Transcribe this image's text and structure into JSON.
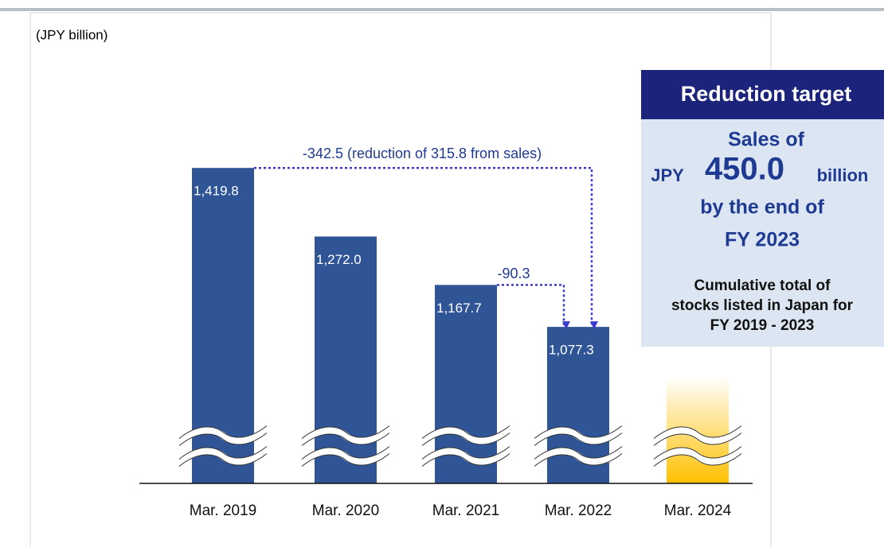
{
  "chart_data": {
    "type": "bar",
    "unit_label": "(JPY billion)",
    "categories": [
      "Mar. 2019",
      "Mar. 2020",
      "Mar. 2021",
      "Mar. 2022",
      "Mar. 2024"
    ],
    "values": [
      1419.8,
      1272.0,
      1167.7,
      1077.3,
      970
    ],
    "value_labels": [
      "1,419.8",
      "1,272.0",
      "1,167.7",
      "1,077.3",
      null
    ],
    "colors": [
      "#2f5597",
      "#2f5597",
      "#2f5597",
      "#2f5597",
      "#ffc000"
    ],
    "ylim": [
      740,
      1720
    ],
    "annotations": {
      "long": "-342.5 (reduction of 315.8 from sales)",
      "short": "-90.3"
    },
    "target_box": {
      "header": "Reduction target",
      "line1": "Sales of",
      "prefix": "JPY",
      "amount": "450.0",
      "suffix": "billion",
      "line3": "by the end of",
      "line4": "FY 2023",
      "note1": "Cumulative total of",
      "note2": "stocks listed in Japan for",
      "note3": "FY 2019 - 2023"
    }
  }
}
